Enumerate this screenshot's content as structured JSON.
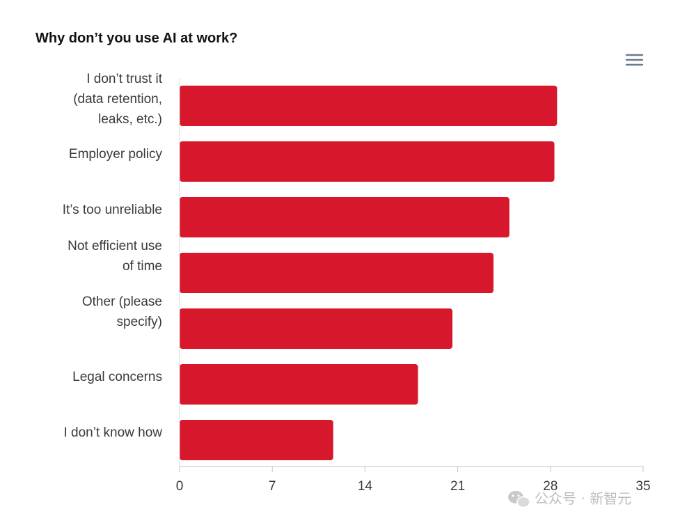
{
  "chart_data": {
    "type": "bar",
    "orientation": "horizontal",
    "title": "Why don’t you use AI at work?",
    "categories": [
      [
        "I don’t trust it",
        "(data retention,",
        "leaks, etc.)"
      ],
      [
        "Employer policy"
      ],
      [
        "It’s too unreliable"
      ],
      [
        "Not efficient use",
        "of time"
      ],
      [
        "Other (please",
        "specify)"
      ],
      [
        "Legal concerns"
      ],
      [
        "I don’t know how"
      ]
    ],
    "values": [
      28.5,
      28.3,
      24.9,
      23.7,
      20.6,
      18.0,
      11.6
    ],
    "xlim": [
      0,
      35
    ],
    "xticks": [
      0,
      7,
      14,
      21,
      28,
      35
    ],
    "bar_color": "#d7172b",
    "grid": false,
    "legend": "none"
  },
  "menu": {
    "icon": "hamburger-menu-icon"
  },
  "watermark": {
    "text": "公众号 · 新智元",
    "icon": "wechat-icon"
  }
}
